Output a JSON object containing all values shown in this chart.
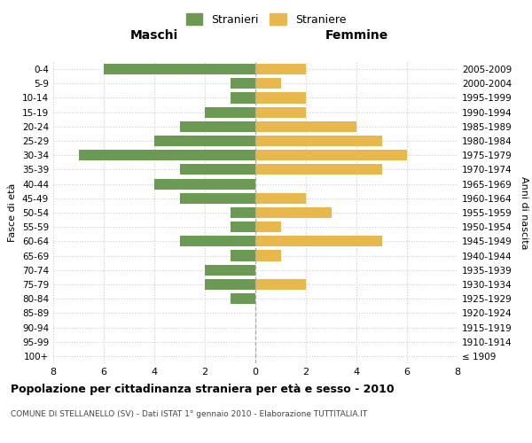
{
  "age_groups": [
    "100+",
    "95-99",
    "90-94",
    "85-89",
    "80-84",
    "75-79",
    "70-74",
    "65-69",
    "60-64",
    "55-59",
    "50-54",
    "45-49",
    "40-44",
    "35-39",
    "30-34",
    "25-29",
    "20-24",
    "15-19",
    "10-14",
    "5-9",
    "0-4"
  ],
  "birth_years": [
    "≤ 1909",
    "1910-1914",
    "1915-1919",
    "1920-1924",
    "1925-1929",
    "1930-1934",
    "1935-1939",
    "1940-1944",
    "1945-1949",
    "1950-1954",
    "1955-1959",
    "1960-1964",
    "1965-1969",
    "1970-1974",
    "1975-1979",
    "1980-1984",
    "1985-1989",
    "1990-1994",
    "1995-1999",
    "2000-2004",
    "2005-2009"
  ],
  "males": [
    0,
    0,
    0,
    0,
    1,
    2,
    2,
    1,
    3,
    1,
    1,
    3,
    4,
    3,
    7,
    4,
    3,
    2,
    1,
    1,
    6
  ],
  "females": [
    0,
    0,
    0,
    0,
    0,
    2,
    0,
    1,
    5,
    1,
    3,
    2,
    0,
    5,
    6,
    5,
    4,
    2,
    2,
    1,
    2
  ],
  "male_color": "#6b9a52",
  "female_color": "#e8b84b",
  "background_color": "#ffffff",
  "grid_color": "#cccccc",
  "title": "Popolazione per cittadinanza straniera per età e sesso - 2010",
  "subtitle": "COMUNE DI STELLANELLO (SV) - Dati ISTAT 1° gennaio 2010 - Elaborazione TUTTITALIA.IT",
  "xlabel_left": "Maschi",
  "xlabel_right": "Femmine",
  "ylabel_left": "Fasce di età",
  "ylabel_right": "Anni di nascita",
  "legend_male": "Stranieri",
  "legend_female": "Straniere",
  "xlim": 8
}
